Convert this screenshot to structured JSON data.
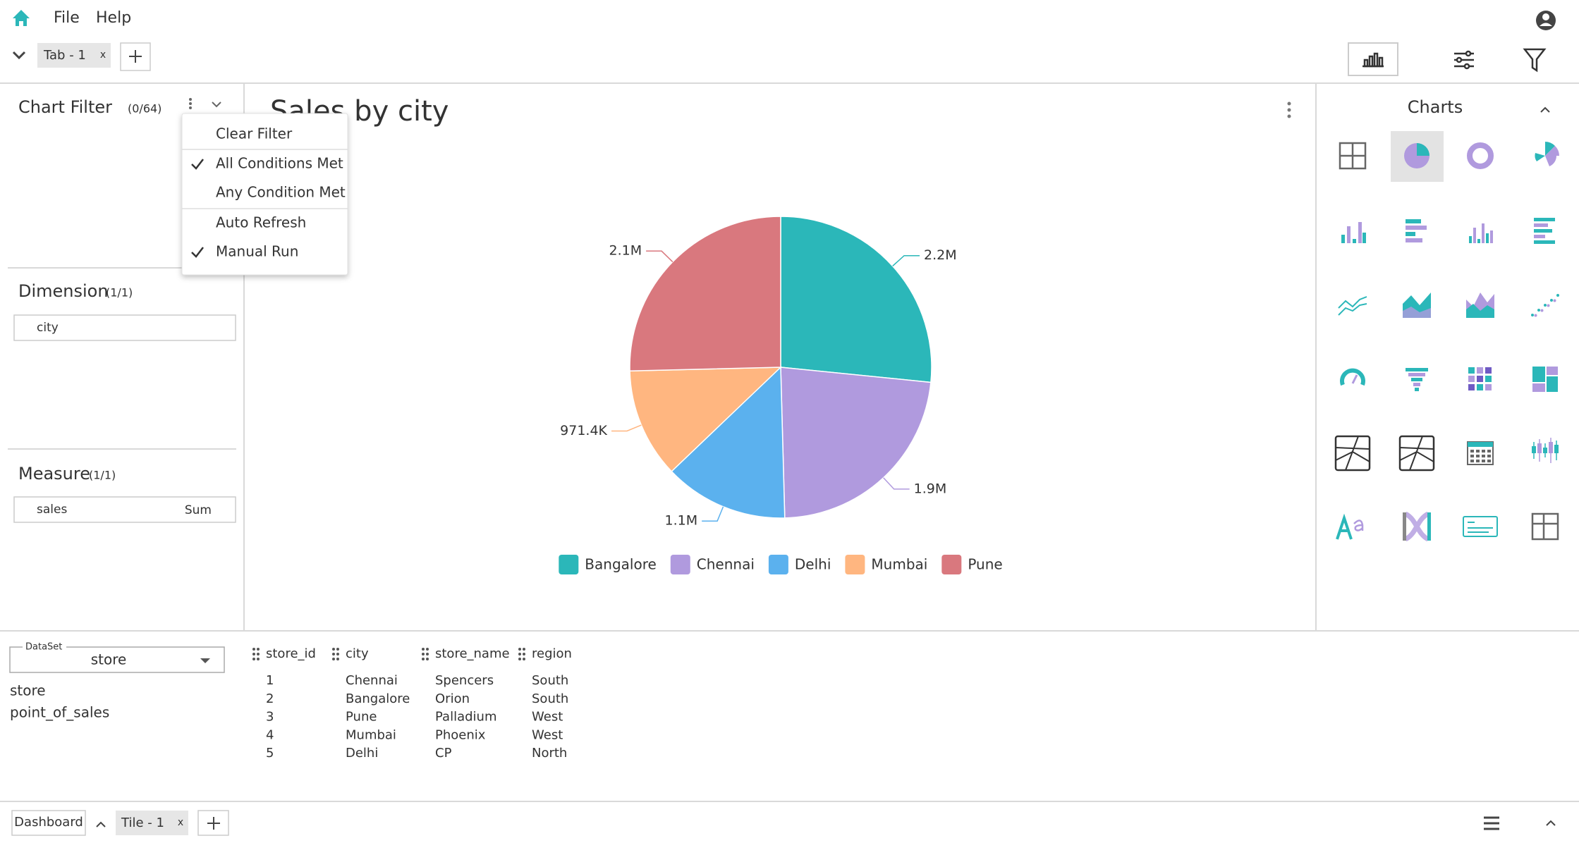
{
  "menu_bar": {
    "items": [
      "File",
      "Help"
    ]
  },
  "tabs": {
    "items": [
      "Tab - 1"
    ],
    "close": "x"
  },
  "left_panel": {
    "chart_filter": {
      "title": "Chart Filter",
      "count": "(0/64)"
    },
    "dimension": {
      "title": "Dimension",
      "count": "(1/1)",
      "fields": [
        "city"
      ]
    },
    "measure": {
      "title": "Measure",
      "count": "(1/1)",
      "fields": [
        {
          "name": "sales",
          "aggregation": "Sum"
        }
      ]
    }
  },
  "filter_menu": {
    "items": [
      {
        "label": "Clear Filter",
        "checked": false
      },
      {
        "label": "All Conditions Met",
        "checked": true
      },
      {
        "label": "Any Condition Met",
        "checked": false
      },
      {
        "label": "Auto Refresh",
        "checked": false
      },
      {
        "label": "Manual Run",
        "checked": true
      }
    ]
  },
  "chart_data": {
    "type": "pie",
    "title": "Sales by city",
    "categories": [
      "Bangalore",
      "Chennai",
      "Delhi",
      "Mumbai",
      "Pune"
    ],
    "values": [
      2200000,
      1900000,
      1100000,
      971400,
      2100000
    ],
    "value_labels": [
      "2.2M",
      "1.9M",
      "1.1M",
      "971.4K",
      "2.1M"
    ],
    "colors": [
      "#2bb7b9",
      "#b09ade",
      "#5bb1ee",
      "#ffb680",
      "#d9787e"
    ]
  },
  "charts_panel": {
    "title": "Charts"
  },
  "dataset": {
    "label": "DataSet",
    "selected": "store",
    "tables": [
      "store",
      "point_of_sales"
    ]
  },
  "table": {
    "columns": [
      "store_id",
      "city",
      "store_name",
      "region"
    ],
    "rows": [
      [
        1,
        "Chennai",
        "Spencers",
        "South"
      ],
      [
        2,
        "Bangalore",
        "Orion",
        "South"
      ],
      [
        3,
        "Pune",
        "Palladium",
        "West"
      ],
      [
        4,
        "Mumbai",
        "Phoenix",
        "West"
      ],
      [
        5,
        "Delhi",
        "CP",
        "North"
      ]
    ]
  },
  "bottom_bar": {
    "dashboard": "Dashboard",
    "tiles": [
      "Tile - 1"
    ],
    "close": "x"
  }
}
